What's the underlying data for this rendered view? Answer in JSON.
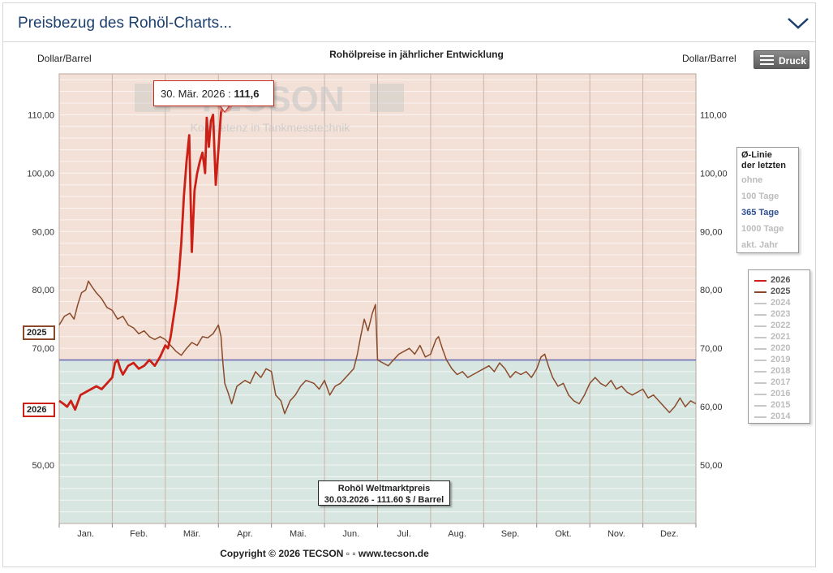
{
  "header": {
    "title": "Preisbezug des Rohöl-Charts..."
  },
  "print_button": {
    "label": "Druck",
    "icon": "menu-icon"
  },
  "tooltip": {
    "date": "30. Mär. 2026 : ",
    "value": "111,6"
  },
  "price_box": {
    "line1": "Rohöl Weltmarktpreis",
    "line2": "30.03.2026 - 111.60 $ / Barrel"
  },
  "watermark": {
    "brand": "TECSON",
    "slogan": "Kompetenz in Tankmesstechnik"
  },
  "avg_panel": {
    "title_line1": "Ø-Linie",
    "title_line2": "der letzten",
    "options": [
      {
        "label": "ohne",
        "active": false
      },
      {
        "label": "100 Tage",
        "active": false
      },
      {
        "label": "365 Tage",
        "active": true
      },
      {
        "label": "1000 Tage",
        "active": false
      },
      {
        "label": "akt. Jahr",
        "active": false
      }
    ]
  },
  "legend": {
    "items": [
      {
        "label": "2026",
        "color": "#cc1f16"
      },
      {
        "label": "2025",
        "color": "#8a4a2a"
      },
      {
        "label": "2024",
        "color": "#c8c8c8"
      },
      {
        "label": "2023",
        "color": "#c8c8c8"
      },
      {
        "label": "2022",
        "color": "#c8c8c8"
      },
      {
        "label": "2021",
        "color": "#c8c8c8"
      },
      {
        "label": "2020",
        "color": "#c8c8c8"
      },
      {
        "label": "2019",
        "color": "#c8c8c8"
      },
      {
        "label": "2018",
        "color": "#c8c8c8"
      },
      {
        "label": "2017",
        "color": "#c8c8c8"
      },
      {
        "label": "2016",
        "color": "#c8c8c8"
      },
      {
        "label": "2015",
        "color": "#c8c8c8"
      },
      {
        "label": "2014",
        "color": "#c8c8c8"
      }
    ]
  },
  "series_tags": {
    "y2025": "2025",
    "y2026": "2026"
  },
  "copyright": "Copyright © 2026 TECSON ▫ ▫ www.tecson.de",
  "chart_data": {
    "type": "line",
    "title": "Rohölpreise in jährlicher Entwicklung",
    "ylabel": "Dollar/Barrel",
    "ylabel_right": "Dollar/Barrel",
    "ylim": [
      40,
      117
    ],
    "yticks": [
      50,
      60,
      70,
      80,
      90,
      100,
      110
    ],
    "ytick_labels": [
      "50,00",
      "60,00",
      "70,00",
      "80,00",
      "90,00",
      "100,00",
      "110,00"
    ],
    "x_unit": "month",
    "xlim": [
      0,
      12
    ],
    "months": [
      "Jan.",
      "Feb.",
      "Mär.",
      "Apr.",
      "Mai.",
      "Jun.",
      "Jul.",
      "Aug.",
      "Sep.",
      "Okt.",
      "Nov.",
      "Dez."
    ],
    "average_line": {
      "label": "365 Tage",
      "value": 68.0,
      "color": "#6d6fb3"
    },
    "colors": {
      "above": "#f3e0d6",
      "below": "#d8e6e2"
    },
    "series": [
      {
        "name": "2025",
        "color": "#8a4a2a",
        "points": [
          [
            0.0,
            74.0
          ],
          [
            0.1,
            75.5
          ],
          [
            0.2,
            76.0
          ],
          [
            0.28,
            75.0
          ],
          [
            0.35,
            77.5
          ],
          [
            0.42,
            79.5
          ],
          [
            0.5,
            80.0
          ],
          [
            0.55,
            81.5
          ],
          [
            0.62,
            80.5
          ],
          [
            0.7,
            79.5
          ],
          [
            0.8,
            78.5
          ],
          [
            0.9,
            77.0
          ],
          [
            1.0,
            76.5
          ],
          [
            1.1,
            75.0
          ],
          [
            1.2,
            75.5
          ],
          [
            1.3,
            74.0
          ],
          [
            1.4,
            73.5
          ],
          [
            1.5,
            72.5
          ],
          [
            1.6,
            73.0
          ],
          [
            1.7,
            72.0
          ],
          [
            1.8,
            71.5
          ],
          [
            1.9,
            72.0
          ],
          [
            2.0,
            71.5
          ],
          [
            2.1,
            70.5
          ],
          [
            2.2,
            69.5
          ],
          [
            2.3,
            68.8
          ],
          [
            2.4,
            70.0
          ],
          [
            2.5,
            71.0
          ],
          [
            2.6,
            70.5
          ],
          [
            2.7,
            72.0
          ],
          [
            2.8,
            71.8
          ],
          [
            2.9,
            72.5
          ],
          [
            3.0,
            74.0
          ],
          [
            3.05,
            72.0
          ],
          [
            3.08,
            68.0
          ],
          [
            3.12,
            64.0
          ],
          [
            3.18,
            62.5
          ],
          [
            3.25,
            60.5
          ],
          [
            3.35,
            63.5
          ],
          [
            3.5,
            64.5
          ],
          [
            3.6,
            64.0
          ],
          [
            3.7,
            66.0
          ],
          [
            3.8,
            65.0
          ],
          [
            3.9,
            66.5
          ],
          [
            4.0,
            66.0
          ],
          [
            4.08,
            62.0
          ],
          [
            4.18,
            61.0
          ],
          [
            4.25,
            58.8
          ],
          [
            4.35,
            61.0
          ],
          [
            4.45,
            62.0
          ],
          [
            4.55,
            63.5
          ],
          [
            4.65,
            64.5
          ],
          [
            4.8,
            64.0
          ],
          [
            4.9,
            63.0
          ],
          [
            5.0,
            64.5
          ],
          [
            5.1,
            62.0
          ],
          [
            5.2,
            63.5
          ],
          [
            5.3,
            64.0
          ],
          [
            5.45,
            65.5
          ],
          [
            5.55,
            66.5
          ],
          [
            5.62,
            69.0
          ],
          [
            5.68,
            72.0
          ],
          [
            5.75,
            75.0
          ],
          [
            5.82,
            73.0
          ],
          [
            5.9,
            76.0
          ],
          [
            5.96,
            77.5
          ],
          [
            6.0,
            68.0
          ],
          [
            6.1,
            67.5
          ],
          [
            6.2,
            67.0
          ],
          [
            6.3,
            68.0
          ],
          [
            6.4,
            69.0
          ],
          [
            6.5,
            69.5
          ],
          [
            6.6,
            70.0
          ],
          [
            6.7,
            69.0
          ],
          [
            6.8,
            70.5
          ],
          [
            6.9,
            68.5
          ],
          [
            7.0,
            69.0
          ],
          [
            7.1,
            71.5
          ],
          [
            7.15,
            72.0
          ],
          [
            7.22,
            70.0
          ],
          [
            7.3,
            68.0
          ],
          [
            7.4,
            66.5
          ],
          [
            7.5,
            65.5
          ],
          [
            7.6,
            66.0
          ],
          [
            7.7,
            65.0
          ],
          [
            7.8,
            65.5
          ],
          [
            7.9,
            66.0
          ],
          [
            8.0,
            66.5
          ],
          [
            8.1,
            67.0
          ],
          [
            8.2,
            66.0
          ],
          [
            8.3,
            67.5
          ],
          [
            8.4,
            66.5
          ],
          [
            8.5,
            65.0
          ],
          [
            8.6,
            66.0
          ],
          [
            8.7,
            65.5
          ],
          [
            8.8,
            66.0
          ],
          [
            8.9,
            65.0
          ],
          [
            9.0,
            66.5
          ],
          [
            9.08,
            68.5
          ],
          [
            9.15,
            69.0
          ],
          [
            9.22,
            67.0
          ],
          [
            9.3,
            65.0
          ],
          [
            9.4,
            63.5
          ],
          [
            9.5,
            64.0
          ],
          [
            9.6,
            62.0
          ],
          [
            9.7,
            61.0
          ],
          [
            9.8,
            60.5
          ],
          [
            9.9,
            62.0
          ],
          [
            10.0,
            64.0
          ],
          [
            10.1,
            65.0
          ],
          [
            10.2,
            64.0
          ],
          [
            10.3,
            63.5
          ],
          [
            10.4,
            64.5
          ],
          [
            10.5,
            63.0
          ],
          [
            10.6,
            63.5
          ],
          [
            10.7,
            62.5
          ],
          [
            10.8,
            62.0
          ],
          [
            10.9,
            62.5
          ],
          [
            11.0,
            63.0
          ],
          [
            11.1,
            61.5
          ],
          [
            11.2,
            62.0
          ],
          [
            11.3,
            61.0
          ],
          [
            11.4,
            60.0
          ],
          [
            11.5,
            59.0
          ],
          [
            11.6,
            60.0
          ],
          [
            11.7,
            61.5
          ],
          [
            11.8,
            60.0
          ],
          [
            11.9,
            61.0
          ],
          [
            12.0,
            60.5
          ]
        ]
      },
      {
        "name": "2026",
        "color": "#cc1f16",
        "points": [
          [
            0.0,
            61.0
          ],
          [
            0.08,
            60.5
          ],
          [
            0.15,
            60.0
          ],
          [
            0.22,
            61.0
          ],
          [
            0.3,
            59.5
          ],
          [
            0.4,
            62.0
          ],
          [
            0.5,
            62.5
          ],
          [
            0.6,
            63.0
          ],
          [
            0.7,
            63.5
          ],
          [
            0.8,
            63.0
          ],
          [
            0.9,
            64.0
          ],
          [
            1.0,
            65.0
          ],
          [
            1.05,
            67.5
          ],
          [
            1.1,
            68.0
          ],
          [
            1.15,
            66.5
          ],
          [
            1.2,
            65.5
          ],
          [
            1.3,
            67.0
          ],
          [
            1.4,
            67.5
          ],
          [
            1.5,
            66.5
          ],
          [
            1.6,
            67.0
          ],
          [
            1.7,
            68.0
          ],
          [
            1.8,
            67.0
          ],
          [
            1.9,
            68.5
          ],
          [
            2.0,
            70.5
          ],
          [
            2.05,
            70.0
          ],
          [
            2.1,
            72.0
          ],
          [
            2.15,
            75.0
          ],
          [
            2.2,
            78.0
          ],
          [
            2.25,
            82.0
          ],
          [
            2.3,
            88.0
          ],
          [
            2.35,
            96.0
          ],
          [
            2.4,
            102.0
          ],
          [
            2.45,
            106.5
          ],
          [
            2.5,
            86.5
          ],
          [
            2.55,
            97.0
          ],
          [
            2.6,
            100.0
          ],
          [
            2.65,
            102.0
          ],
          [
            2.7,
            103.5
          ],
          [
            2.75,
            100.0
          ],
          [
            2.78,
            109.5
          ],
          [
            2.82,
            104.5
          ],
          [
            2.86,
            109.0
          ],
          [
            2.9,
            110.0
          ],
          [
            2.95,
            98.0
          ],
          [
            3.0,
            104.0
          ],
          [
            3.05,
            110.5
          ],
          [
            3.12,
            111.6
          ]
        ]
      }
    ]
  }
}
